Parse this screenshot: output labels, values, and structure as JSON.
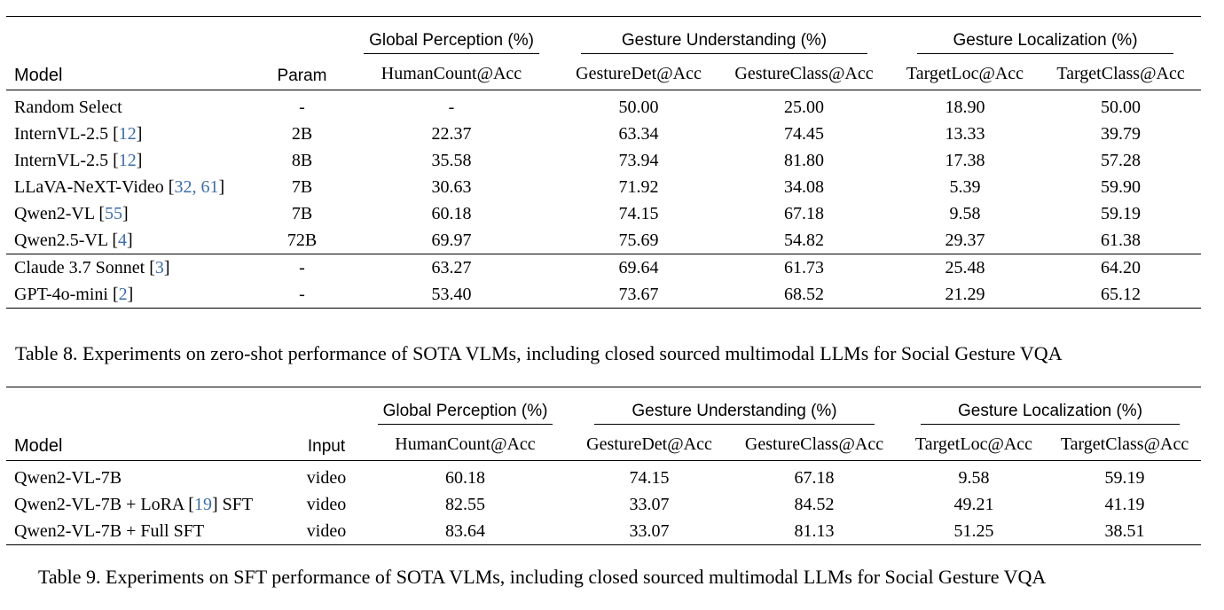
{
  "table8": {
    "headers": {
      "model": "Model",
      "param": "Param",
      "groups": [
        "Global Perception (%)",
        "Gesture Understanding (%)",
        "Gesture Localization (%)"
      ],
      "metrics": [
        "HumanCount@Acc",
        "GestureDet@Acc",
        "GestureClass@Acc",
        "TargetLoc@Acc",
        "TargetClass@Acc"
      ]
    },
    "rows": [
      {
        "model": "Random Select",
        "refs": "",
        "param": "-",
        "values": [
          "-",
          "50.00",
          "25.00",
          "18.90",
          "50.00"
        ],
        "bold": [
          false,
          false,
          false,
          false,
          false
        ]
      },
      {
        "model": "InternVL-2.5",
        "refs": "12",
        "param": "2B",
        "values": [
          "22.37",
          "63.34",
          "74.45",
          "13.33",
          "39.79"
        ],
        "bold": [
          false,
          false,
          false,
          false,
          false
        ]
      },
      {
        "model": "InternVL-2.5",
        "refs": "12",
        "param": "8B",
        "values": [
          "35.58",
          "73.94",
          "81.80",
          "17.38",
          "57.28"
        ],
        "bold": [
          false,
          false,
          true,
          false,
          false
        ]
      },
      {
        "model": "LLaVA-NeXT-Video",
        "refs": "32, 61",
        "param": "7B",
        "values": [
          "30.63",
          "71.92",
          "34.08",
          "5.39",
          "59.90"
        ],
        "bold": [
          false,
          false,
          false,
          false,
          false
        ]
      },
      {
        "model": "Qwen2-VL",
        "refs": "55",
        "param": "7B",
        "values": [
          "60.18",
          "74.15",
          "67.18",
          "9.58",
          "59.19"
        ],
        "bold": [
          false,
          false,
          false,
          false,
          false
        ]
      },
      {
        "model": "Qwen2.5-VL",
        "refs": "4",
        "param": "72B",
        "values": [
          "69.97",
          "75.69",
          "54.82",
          "29.37",
          "61.38"
        ],
        "bold": [
          true,
          true,
          false,
          true,
          true
        ]
      },
      {
        "model": "Claude 3.7 Sonnet",
        "refs": "3",
        "param": "-",
        "values": [
          "63.27",
          "69.64",
          "61.73",
          "25.48",
          "64.20"
        ],
        "bold": [
          true,
          false,
          false,
          true,
          false
        ]
      },
      {
        "model": "GPT-4o-mini",
        "refs": "2",
        "param": "-",
        "values": [
          "53.40",
          "73.67",
          "68.52",
          "21.29",
          "65.12"
        ],
        "bold": [
          false,
          true,
          true,
          false,
          true
        ]
      }
    ],
    "caption": "Table 8. Experiments on zero-shot performance of SOTA VLMs, including closed sourced multimodal LLMs for Social Gesture VQA"
  },
  "table9": {
    "headers": {
      "model": "Model",
      "input": "Input",
      "groups": [
        "Global Perception (%)",
        "Gesture Understanding (%)",
        "Gesture Localization (%)"
      ],
      "metrics": [
        "HumanCount@Acc",
        "GestureDet@Acc",
        "GestureClass@Acc",
        "TargetLoc@Acc",
        "TargetClass@Acc"
      ]
    },
    "rows": [
      {
        "model": "Qwen2-VL-7B",
        "ref": "",
        "suffix": "",
        "input": "video",
        "values": [
          "60.18",
          "74.15",
          "67.18",
          "9.58",
          "59.19"
        ]
      },
      {
        "model": "Qwen2-VL-7B + LoRA",
        "ref": "19",
        "suffix": "SFT",
        "input": "video",
        "values": [
          "82.55",
          "33.07",
          "84.52",
          "49.21",
          "41.19"
        ]
      },
      {
        "model": "Qwen2-VL-7B + Full SFT",
        "ref": "",
        "suffix": "",
        "input": "video",
        "values": [
          "83.64",
          "33.07",
          "81.13",
          "51.25",
          "38.51"
        ]
      }
    ],
    "caption": "Table 9. Experiments on SFT performance of SOTA VLMs, including closed sourced multimodal LLMs for Social Gesture VQA"
  },
  "colors": {
    "reference_link": "#3b6eaa",
    "text": "#000000"
  }
}
